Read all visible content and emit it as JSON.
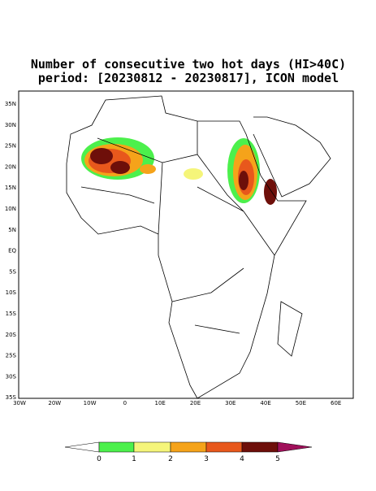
{
  "title": {
    "line1": "Number of consecutive two hot days (HI>40C)",
    "line2": "period: [20230812 - 20230817], ICON model"
  },
  "lat_labels": [
    "35N",
    "30N",
    "25N",
    "20N",
    "15N",
    "10N",
    "5N",
    "EQ",
    "5S",
    "10S",
    "15S",
    "20S",
    "25S",
    "30S",
    "35S"
  ],
  "lon_labels": [
    "30W",
    "20W",
    "10W",
    "0",
    "10E",
    "20E",
    "30E",
    "40E",
    "50E",
    "60E"
  ],
  "colorbar": {
    "labels": [
      "0",
      "1",
      "2",
      "3",
      "4",
      "5"
    ]
  }
}
